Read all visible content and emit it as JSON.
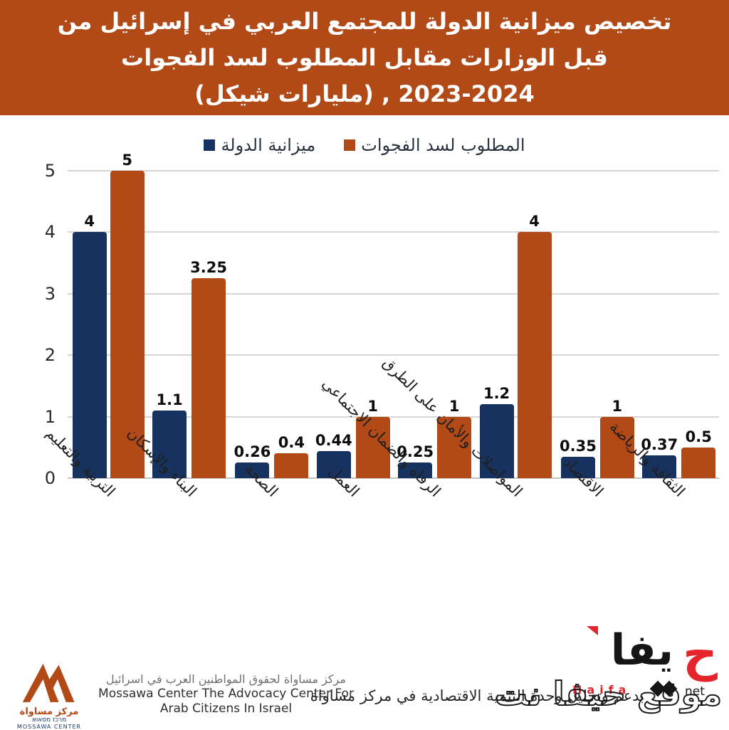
{
  "colors": {
    "navy": "#17325e",
    "orange": "#b24a18",
    "banner": "#b24a18",
    "red": "#e4252c",
    "grid": "#d6d6d6",
    "baseline": "#c2c2c2"
  },
  "title": {
    "line1": "تخصيص ميزانية الدولة للمجتمع العربي في إسرائيل من",
    "line2": "قبل الوزارات مقابل المطلوب لسد الفجوات",
    "line3": "(مليارات شيكل) , 2024-2023"
  },
  "legend": [
    {
      "label": "ميزانية الدولة",
      "color": "navy"
    },
    {
      "label": "المطلوب لسد الفجوات",
      "color": "orange"
    }
  ],
  "chart_data": {
    "type": "bar",
    "categories": [
      "التربية والتعليم",
      "البناء والإسكان",
      "الصحة",
      "العمل",
      "الرفاه والضمان الاجتماعي",
      "المواصلات والأمان على الطرق",
      "الاقتصاد",
      "الثقافة والرياضة"
    ],
    "series": [
      {
        "name": "ميزانية الدولة",
        "color": "#17325e",
        "values": [
          4,
          1.1,
          0.26,
          0.44,
          0.25,
          1.2,
          0.35,
          0.37
        ]
      },
      {
        "name": "المطلوب لسد الفجوات",
        "color": "#b24a18",
        "values": [
          5,
          3.25,
          0.4,
          1,
          1,
          4,
          1,
          0.5
        ]
      }
    ],
    "ylim": [
      0,
      5
    ],
    "yticks": [
      0,
      1,
      2,
      3,
      4,
      5
    ],
    "grid": true,
    "legend_position": "top"
  },
  "footer": {
    "caption": "بدعم وتحليل وحدة التنمية الاقتصادية في مركز مساواة",
    "mossawa": {
      "line_ar": "مركز مساواة لحقوق المواطنين العرب في اسرائيل",
      "line_en1": "Mossawa Center The Advocacy Center For",
      "line_en2": "Arab Citizens In Israel",
      "logo_ar": "مركز مساواة",
      "logo_he": "מרכז מסאוא",
      "logo_en": "MOSSAWA CENTER"
    },
    "haifa": {
      "arabic_tail": "يفا",
      "arabic_ha": "ح",
      "latin": "Haifa",
      "net": "net",
      "watermark": "موقع حيفا نت"
    }
  }
}
